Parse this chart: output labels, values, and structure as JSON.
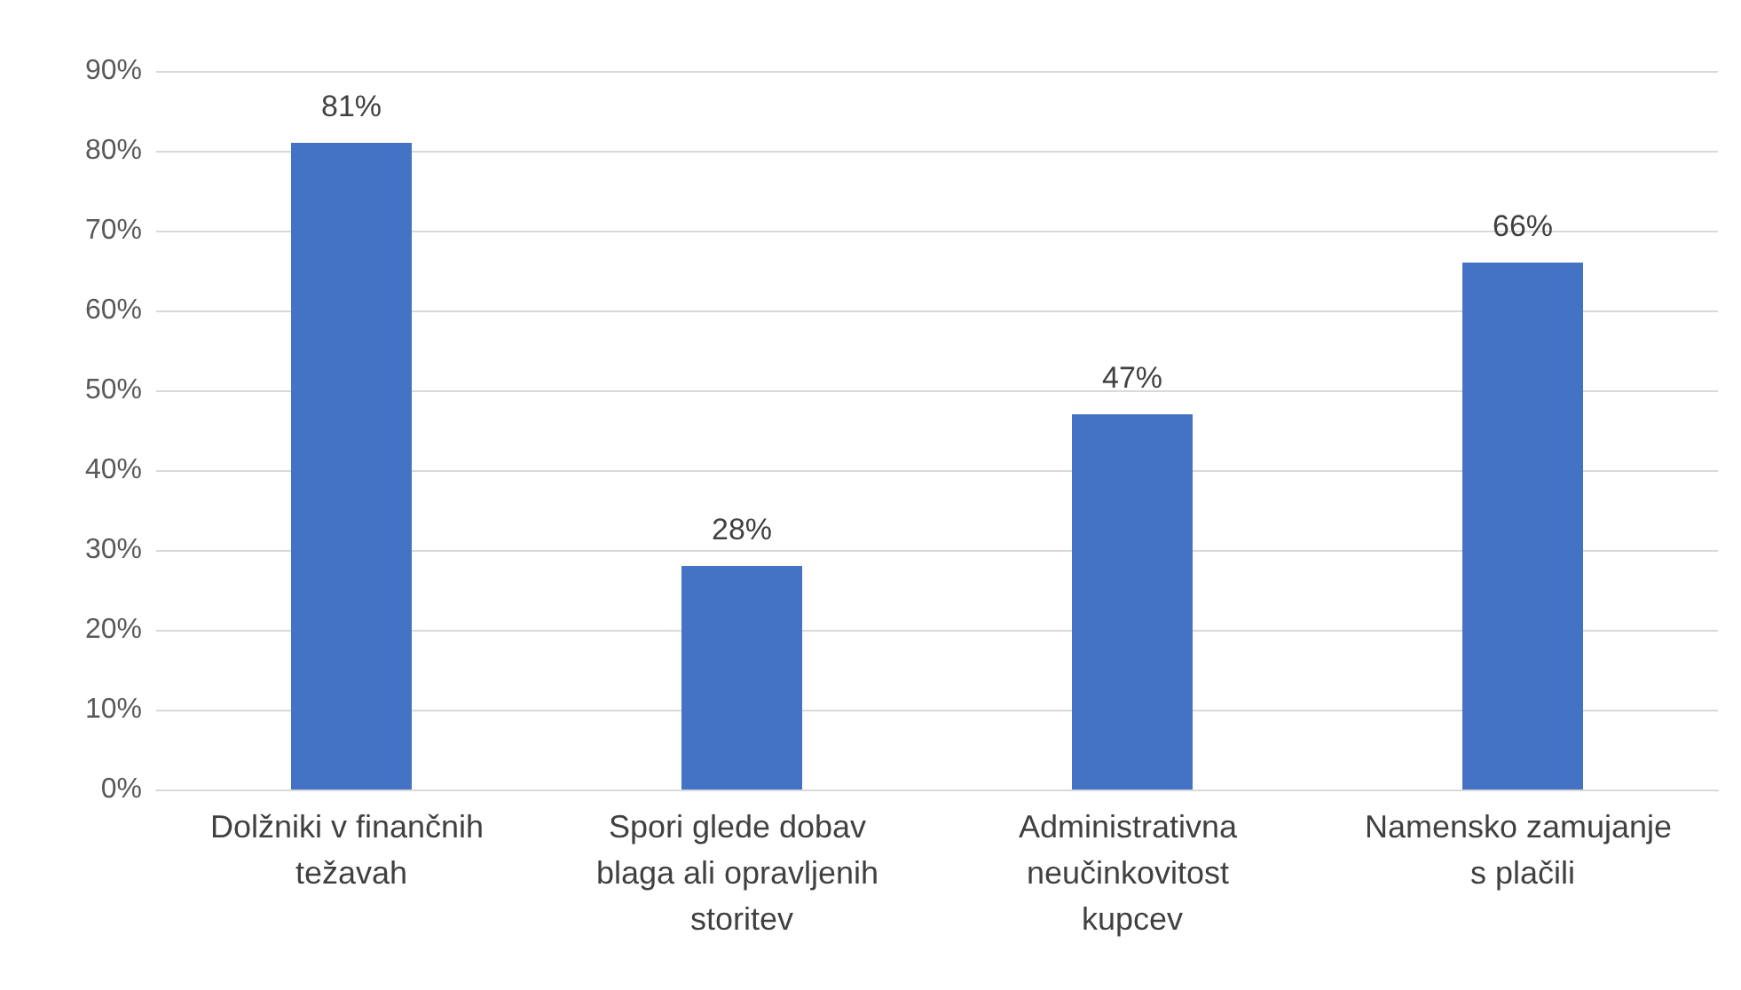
{
  "chart_data": {
    "type": "bar",
    "categories": [
      "Dolžniki v finančnih težavah",
      "Spori glede dobav blaga ali opravljenih storitev",
      "Administrativna neučinkovitost kupcev",
      "Namensko zamujanje s plačili"
    ],
    "values": [
      81,
      28,
      47,
      66
    ],
    "value_labels": [
      "81%",
      "28%",
      "47%",
      "66%"
    ],
    "color": "#4472c4",
    "ylim": [
      0,
      90
    ],
    "yticks": [
      {
        "value": 0,
        "label": "0%"
      },
      {
        "value": 10,
        "label": "10%"
      },
      {
        "value": 20,
        "label": "20%"
      },
      {
        "value": 30,
        "label": "30%"
      },
      {
        "value": 40,
        "label": "40%"
      },
      {
        "value": 50,
        "label": "50%"
      },
      {
        "value": 60,
        "label": "60%"
      },
      {
        "value": 70,
        "label": "70%"
      },
      {
        "value": 80,
        "label": "80%"
      },
      {
        "value": 90,
        "label": "90%"
      }
    ],
    "grid": "y"
  }
}
